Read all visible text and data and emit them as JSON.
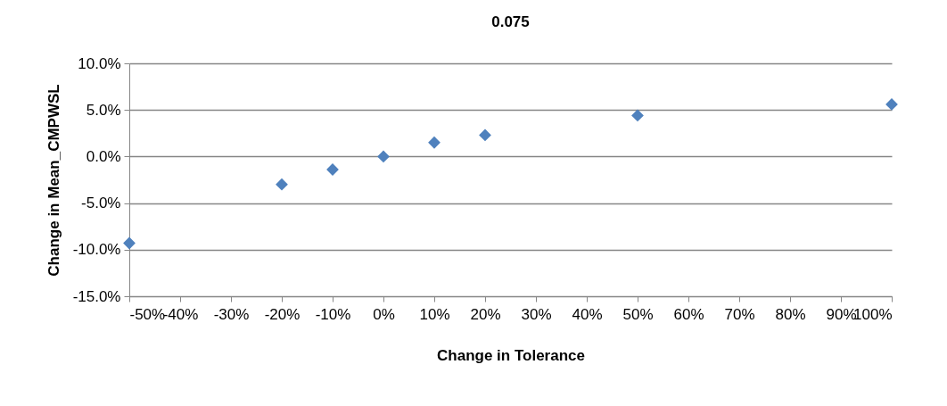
{
  "chart_data": {
    "type": "scatter",
    "title": "0.075",
    "xlabel": "Change in Tolerance",
    "ylabel": "Change in Mean_CMPWSL",
    "x": [
      -50,
      -20,
      -10,
      0,
      10,
      20,
      50,
      100
    ],
    "series": [
      {
        "color": "#4f81bd",
        "values": [
          -9.3,
          -3.0,
          -1.4,
          0,
          1.5,
          2.3,
          4.4,
          5.6
        ]
      }
    ],
    "xlim": [
      -50,
      100
    ],
    "xticks": [
      {
        "value": -50,
        "label": "-50%"
      },
      {
        "value": -40,
        "label": "-40%"
      },
      {
        "value": -30,
        "label": "-30%"
      },
      {
        "value": -20,
        "label": "-20%"
      },
      {
        "value": -10,
        "label": "-10%"
      },
      {
        "value": 0,
        "label": "0%"
      },
      {
        "value": 10,
        "label": "10%"
      },
      {
        "value": 20,
        "label": "20%"
      },
      {
        "value": 30,
        "label": "30%"
      },
      {
        "value": 40,
        "label": "40%"
      },
      {
        "value": 50,
        "label": "50%"
      },
      {
        "value": 60,
        "label": "60%"
      },
      {
        "value": 70,
        "label": "70%"
      },
      {
        "value": 80,
        "label": "80%"
      },
      {
        "value": 90,
        "label": "90%"
      },
      {
        "value": 100,
        "label": "100%"
      }
    ],
    "ylim": [
      -15,
      10
    ],
    "yticks": [
      {
        "value": -15,
        "label": "-15.0%"
      },
      {
        "value": -10,
        "label": "-10.0%"
      },
      {
        "value": -5,
        "label": "-5.0%"
      },
      {
        "value": 0,
        "label": "0.0%"
      },
      {
        "value": 5,
        "label": "5.0%"
      },
      {
        "value": 10,
        "label": "10.0%"
      }
    ],
    "grid": "y",
    "marker": "diamond"
  }
}
